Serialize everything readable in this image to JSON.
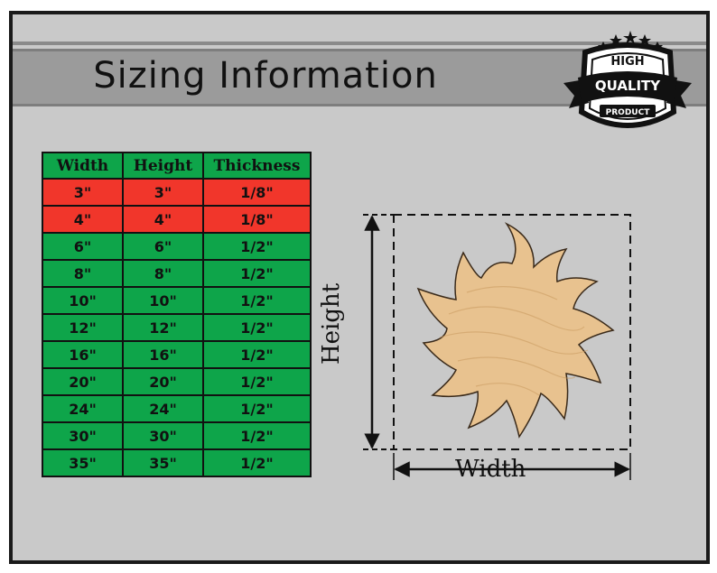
{
  "title": "Sizing Information",
  "badge": {
    "line1": "HIGH",
    "line2": "QUALITY",
    "line3": "PRODUCT",
    "icon": "quality-badge-icon"
  },
  "table": {
    "headers": [
      "Width",
      "Height",
      "Thickness"
    ],
    "rows": [
      {
        "width": "3\"",
        "height": "3\"",
        "thickness": "1/8\"",
        "color": "#f1362b"
      },
      {
        "width": "4\"",
        "height": "4\"",
        "thickness": "1/8\"",
        "color": "#f1362b"
      },
      {
        "width": "6\"",
        "height": "6\"",
        "thickness": "1/2\"",
        "color": "#0ea54a"
      },
      {
        "width": "8\"",
        "height": "8\"",
        "thickness": "1/2\"",
        "color": "#0ea54a"
      },
      {
        "width": "10\"",
        "height": "10\"",
        "thickness": "1/2\"",
        "color": "#0ea54a"
      },
      {
        "width": "12\"",
        "height": "12\"",
        "thickness": "1/2\"",
        "color": "#0ea54a"
      },
      {
        "width": "16\"",
        "height": "16\"",
        "thickness": "1/2\"",
        "color": "#0ea54a"
      },
      {
        "width": "20\"",
        "height": "20\"",
        "thickness": "1/2\"",
        "color": "#0ea54a"
      },
      {
        "width": "24\"",
        "height": "24\"",
        "thickness": "1/2\"",
        "color": "#0ea54a"
      },
      {
        "width": "30\"",
        "height": "30\"",
        "thickness": "1/2\"",
        "color": "#0ea54a"
      },
      {
        "width": "35\"",
        "height": "35\"",
        "thickness": "1/2\"",
        "color": "#0ea54a"
      }
    ]
  },
  "diagram": {
    "width_label": "Width",
    "height_label": "Height",
    "shape_icon": "sun-icon",
    "wood_color": "#e8c28f"
  }
}
